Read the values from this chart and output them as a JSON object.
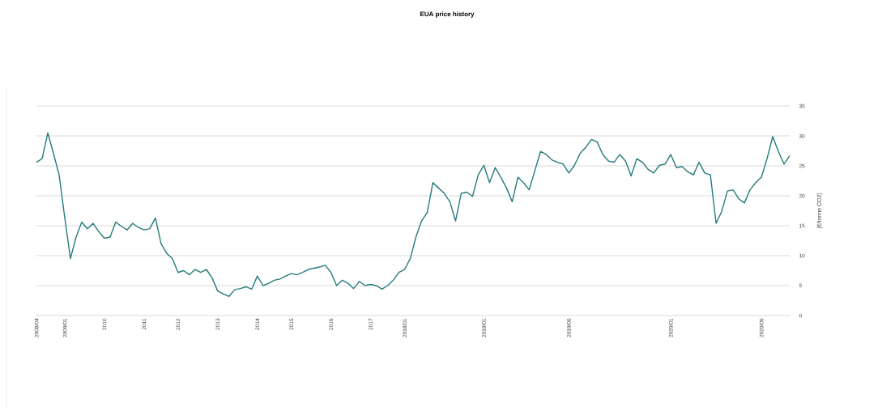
{
  "chart_data": {
    "type": "line",
    "title": "EUA price history",
    "ylabel": "[€/tonne CO2]",
    "categories": [
      "2008/04",
      null,
      null,
      null,
      null,
      "2009/01",
      null,
      null,
      null,
      null,
      null,
      null,
      "2010",
      null,
      null,
      null,
      null,
      null,
      null,
      "2011",
      null,
      null,
      null,
      null,
      null,
      "2012",
      null,
      null,
      null,
      null,
      null,
      null,
      "2013",
      null,
      null,
      null,
      null,
      null,
      null,
      "2014",
      null,
      null,
      null,
      null,
      null,
      "2015",
      null,
      null,
      null,
      null,
      null,
      null,
      "2016",
      null,
      null,
      null,
      null,
      null,
      null,
      "2017",
      null,
      null,
      null,
      null,
      null,
      "2018/01",
      null,
      null,
      null,
      null,
      null,
      null,
      null,
      null,
      null,
      null,
      null,
      null,
      null,
      "2019/01",
      null,
      null,
      null,
      null,
      null,
      null,
      null,
      null,
      null,
      null,
      null,
      null,
      null,
      null,
      "2019/06",
      null,
      null,
      null,
      null,
      null,
      null,
      null,
      null,
      null,
      null,
      null,
      null,
      null,
      null,
      null,
      null,
      null,
      "2020/01",
      null,
      null,
      null,
      null,
      null,
      null,
      null,
      null,
      null,
      null,
      null,
      null,
      null,
      null,
      null,
      "2020/06",
      null,
      null,
      null,
      null,
      null
    ],
    "series": [
      {
        "color": "#267b7b",
        "values": [
          25.6,
          26.2,
          30.5,
          27.1,
          23.5,
          16.3,
          9.5,
          13.1,
          15.6,
          14.5,
          15.4,
          14.0,
          12.9,
          13.1,
          15.6,
          14.9,
          14.3,
          15.4,
          14.7,
          14.3,
          14.5,
          16.3,
          12.0,
          10.4,
          9.5,
          7.2,
          7.5,
          6.8,
          7.7,
          7.2,
          7.7,
          6.3,
          4.1,
          3.6,
          3.2,
          4.3,
          4.5,
          4.8,
          4.4,
          6.6,
          5.0,
          5.4,
          5.9,
          6.1,
          6.6,
          7.0,
          6.8,
          7.2,
          7.7,
          7.9,
          8.1,
          8.4,
          7.2,
          5.0,
          5.9,
          5.4,
          4.5,
          5.7,
          5.0,
          5.2,
          5.0,
          4.4,
          5.0,
          5.9,
          7.2,
          7.7,
          9.5,
          13.1,
          15.8,
          17.2,
          22.2,
          21.3,
          20.4,
          19.0,
          15.8,
          20.4,
          20.6,
          19.9,
          23.5,
          25.1,
          22.2,
          24.7,
          23.1,
          21.3,
          19.0,
          23.1,
          22.2,
          21.0,
          24.2,
          27.4,
          26.9,
          26.0,
          25.6,
          25.3,
          23.8,
          25.1,
          27.1,
          28.1,
          29.4,
          29.0,
          26.9,
          25.8,
          25.6,
          26.9,
          25.8,
          23.3,
          26.2,
          25.6,
          24.4,
          23.8,
          25.1,
          25.3,
          26.9,
          24.7,
          24.9,
          24.0,
          23.5,
          25.6,
          23.8,
          23.5,
          15.4,
          17.4,
          20.8,
          21.0,
          19.5,
          18.8,
          21.0,
          22.2,
          23.1,
          26.2,
          29.9,
          27.4,
          25.3,
          26.7
        ]
      }
    ],
    "ylim": [
      0,
      35
    ],
    "yticks": [
      0,
      5,
      10,
      15,
      20,
      25,
      30,
      35
    ],
    "grid": "y"
  }
}
